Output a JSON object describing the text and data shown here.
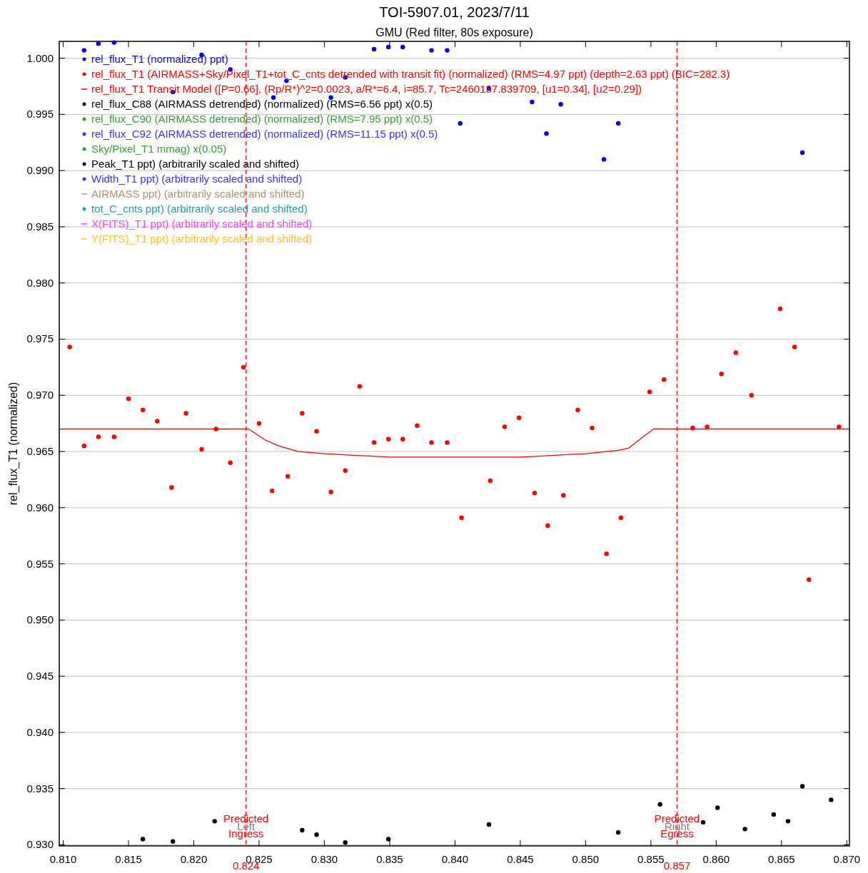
{
  "chart_data": {
    "type": "scatter",
    "title": "TOI-5907.01, 2023/7/11",
    "subtitle": "GMU (Red filter, 80s exposure)",
    "ylabel": "rel_flux_T1 (normalized)",
    "xlim": [
      0.8097,
      0.8702
    ],
    "ylim": [
      0.9299,
      1.0015
    ],
    "xticks": [
      {
        "value": 0.81,
        "label": "0.810"
      },
      0.815,
      {
        "value": 0.82,
        "label": "0.820"
      },
      0.825,
      {
        "value": 0.83,
        "label": "0.830"
      },
      0.835,
      {
        "value": 0.84,
        "label": "0.840"
      },
      0.845,
      {
        "value": 0.85,
        "label": "0.850"
      },
      0.855,
      {
        "value": 0.86,
        "label": "0.860"
      },
      0.865,
      {
        "value": 0.87,
        "label": "0.870"
      }
    ],
    "yticks": [
      {
        "value": 0.93,
        "label": "0.930"
      },
      0.935,
      {
        "value": 0.94,
        "label": "0.940"
      },
      0.945,
      {
        "value": 0.95,
        "label": "0.950"
      },
      0.955,
      {
        "value": 0.96,
        "label": "0.960"
      },
      0.965,
      {
        "value": 0.97,
        "label": "0.970"
      },
      0.975,
      {
        "value": 0.98,
        "label": "0.980"
      },
      0.985,
      {
        "value": 0.99,
        "label": "0.990"
      },
      0.995,
      {
        "value": 1,
        "label": "1.000"
      }
    ],
    "grid": "y",
    "legend": "top left",
    "marker": "circle",
    "series": [
      {
        "name": "rel_flux_T1 (normalized) ppt)",
        "color": "#0000ff",
        "x": [
          0.8116,
          0.8127,
          0.8139,
          0.8184,
          0.8206,
          0.8228,
          0.8261,
          0.8271,
          0.8305,
          0.8316,
          0.8338,
          0.8349,
          0.836,
          0.8382,
          0.8394,
          0.8404,
          0.8426,
          0.8459,
          0.847,
          0.8481,
          0.8514,
          0.8525,
          0.8666
        ],
        "values": [
          1.0007,
          1.0013,
          1.0014,
          0.997,
          1.0003,
          0.999,
          0.9965,
          0.998,
          0.9965,
          0.9983,
          1.0008,
          1.001,
          1.001,
          1.0007,
          1.0007,
          0.9942,
          0.9973,
          0.9961,
          0.9933,
          0.9959,
          0.991,
          0.9942,
          0.9916
        ]
      },
      {
        "name": "rel_flux_T1 (AIRMASS+Sky/Pixel_T1+tot_C_cnts detrended with transit fit) (normalized) (RMS=4.97 ppt) (depth=2.63 ppt) (BIC=282.3)",
        "type": "scatter",
        "color": "#ff0000",
        "x": [
          0.8105,
          0.8116,
          0.8127,
          0.8139,
          0.815,
          0.8161,
          0.8172,
          0.8183,
          0.8194,
          0.8206,
          0.8217,
          0.8228,
          0.8238,
          0.825,
          0.826,
          0.8272,
          0.8283,
          0.8294,
          0.8305,
          0.8316,
          0.8327,
          0.8338,
          0.8349,
          0.836,
          0.8371,
          0.8382,
          0.8394,
          0.8405,
          0.8427,
          0.8438,
          0.8449,
          0.8461,
          0.8471,
          0.8483,
          0.8494,
          0.8505,
          0.8516,
          0.8527,
          0.8549,
          0.856,
          0.8582,
          0.8593,
          0.8604,
          0.8615,
          0.8627,
          0.8649,
          0.866,
          0.8671,
          0.8694
        ],
        "values": [
          0.9743,
          0.9655,
          0.9663,
          0.9663,
          0.9697,
          0.9687,
          0.9677,
          0.9618,
          0.9684,
          0.9652,
          0.967,
          0.964,
          0.9725,
          0.9675,
          0.9615,
          0.9628,
          0.9684,
          0.9668,
          0.9614,
          0.9633,
          0.9708,
          0.9658,
          0.9661,
          0.9661,
          0.9673,
          0.9658,
          0.9658,
          0.9591,
          0.9624,
          0.9672,
          0.968,
          0.9613,
          0.9584,
          0.9611,
          0.9687,
          0.9671,
          0.9559,
          0.9591,
          0.9703,
          0.9714,
          0.9671,
          0.9672,
          0.9719,
          0.9738,
          0.97,
          0.9777,
          0.9743,
          0.9536,
          0.9672
        ]
      },
      {
        "name": "rel_flux_T1 Transit Model ([P=0.66], (Rp/R*)^2=0.0023, a/R*=6.4, i=85.7, Tc=2460137.839709, [u1=0.34], [u2=0.29])",
        "type": "line",
        "marker": "none",
        "color": "#ff0000",
        "x": [
          0.8097,
          0.8242,
          0.8255,
          0.8265,
          0.828,
          0.83,
          0.835,
          0.84,
          0.845,
          0.85,
          0.8525,
          0.8533,
          0.8545,
          0.8552,
          0.8702
        ],
        "values": [
          0.967,
          0.967,
          0.966,
          0.9655,
          0.965,
          0.9648,
          0.9645,
          0.9645,
          0.9645,
          0.9648,
          0.9651,
          0.9653,
          0.9664,
          0.967,
          0.967
        ]
      },
      {
        "name": "rel_flux_C88 (AIRMASS detrended) (normalized) (RMS=6.56 ppt) x(0.5)",
        "color": "#000000",
        "x": [
          0.8161,
          0.8184,
          0.8216,
          0.8283,
          0.8294,
          0.8316,
          0.8349,
          0.8426,
          0.8525,
          0.8557,
          0.859,
          0.8601,
          0.8622,
          0.8644,
          0.8655,
          0.8666,
          0.8688
        ],
        "values": [
          0.9305,
          0.9303,
          0.9321,
          0.9313,
          0.9309,
          0.9302,
          0.9305,
          0.9318,
          0.9311,
          0.9336,
          0.932,
          0.9333,
          0.9314,
          0.9327,
          0.9321,
          0.9352,
          0.934
        ]
      },
      {
        "name": "rel_flux_C90 (AIRMASS detrended) (normalized) (RMS=7.95 ppt) x(0.5)",
        "color": "#33a033"
      },
      {
        "name": "rel_flux_C92 (AIRMASS detrended) (normalized) (RMS=11.15 ppt) x(0.5)",
        "color": "#3333ff"
      },
      {
        "name": "Sky/Pixel_T1 mmag) x(0.05)",
        "color": "#33a033"
      },
      {
        "name": "Peak_T1 ppt) (arbitrarily scaled and shifted)",
        "color": "#000000"
      },
      {
        "name": "Width_T1 ppt) (arbitrarily scaled and shifted)",
        "color": "#3333ff"
      },
      {
        "name": "AIRMASS ppt) (arbitrarily scaled and shifted)",
        "type": "line",
        "color": "#b09070"
      },
      {
        "name": "tot_C_cnts ppt) (arbitrarily scaled and shifted)",
        "color": "#20a0a0"
      },
      {
        "name": "X(FITS)_T1 ppt) (arbitrarily scaled and shifted)",
        "type": "line",
        "color": "#ff40ff"
      },
      {
        "name": "Y(FITS)_T1 ppt) (arbitrarily scaled and shifted)",
        "type": "line",
        "color": "#ffc020"
      }
    ],
    "ref_lines": [
      {
        "axis": "x",
        "value": 0.824,
        "label": "Predicted Ingress",
        "color": "#ff0000",
        "line_style": "dashed"
      },
      {
        "axis": "x",
        "value": 0.857,
        "label": "Predicted Egress",
        "color": "#ff0000",
        "line_style": "dashed"
      }
    ],
    "annotations": [
      "Left",
      "Right",
      "0.824",
      "0.857"
    ]
  }
}
